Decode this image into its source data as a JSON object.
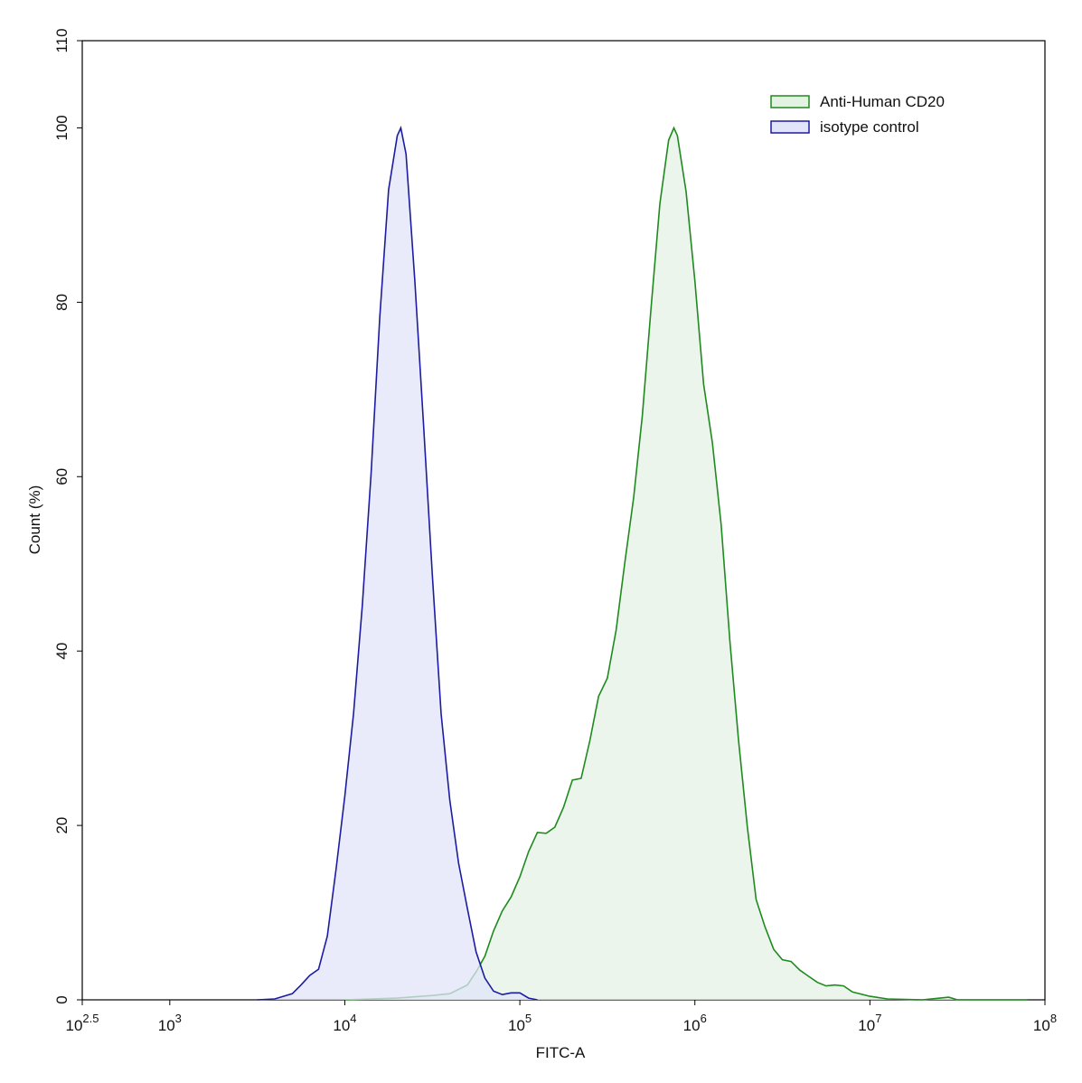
{
  "chart_data": {
    "type": "area",
    "xlabel": "FITC-A",
    "ylabel": "Count  (%)",
    "xscale": "log",
    "xlim": [
      316.23,
      100000000
    ],
    "xticks": [
      {
        "value": 316.23,
        "label": "10",
        "exponent": "2.5"
      },
      {
        "value": 1000,
        "label": "10",
        "exponent": "3"
      },
      {
        "value": 10000,
        "label": "10",
        "exponent": "4"
      },
      {
        "value": 100000,
        "label": "10",
        "exponent": "5"
      },
      {
        "value": 1000000,
        "label": "10",
        "exponent": "6"
      },
      {
        "value": 10000000,
        "label": "10",
        "exponent": "7"
      },
      {
        "value": 100000000,
        "label": "10",
        "exponent": "8"
      }
    ],
    "ylim": [
      0,
      110
    ],
    "yticks": [
      0,
      20,
      40,
      60,
      80,
      100,
      110
    ],
    "legend": "top-right",
    "series": [
      {
        "name": "Anti-Human CD20",
        "color": "#1f8a1f",
        "fill": "#e4f2e4",
        "x": [
          10000,
          19950,
          31620,
          39810,
          50120,
          56230,
          63100,
          70790,
          79430,
          89130,
          100000,
          112200,
          125900,
          141300,
          158500,
          177800,
          199500,
          223900,
          251200,
          281800,
          316200,
          354800,
          398100,
          446700,
          501200,
          562300,
          631000,
          707900,
          758600,
          794300,
          891300,
          1000000,
          1122000,
          1259000,
          1413000,
          1585000,
          1778000,
          1995000,
          2239000,
          2512000,
          2818000,
          3162000,
          3548000,
          3981000,
          4467000,
          5012000,
          5623000,
          6310000,
          7079000,
          7943000,
          10000000,
          12590000,
          19950000,
          25120000,
          28180000,
          31620000,
          79430000
        ],
        "values": [
          0,
          0.2,
          0.5,
          0.7,
          1.7,
          3.2,
          5.0,
          7.9,
          10.2,
          11.8,
          14.1,
          17.0,
          19.2,
          19.1,
          19.8,
          22.1,
          25.2,
          25.4,
          29.7,
          34.8,
          36.9,
          42.4,
          50.2,
          57.6,
          67.0,
          79.4,
          91.3,
          98.6,
          100,
          99.1,
          92.7,
          82.5,
          70.6,
          63.9,
          54.5,
          41.1,
          29.7,
          19.8,
          11.5,
          8.4,
          5.8,
          4.6,
          4.4,
          3.4,
          2.7,
          2.0,
          1.6,
          1.7,
          1.6,
          0.9,
          0.4,
          0.1,
          0,
          0.2,
          0.3,
          0,
          0
        ]
      },
      {
        "name": "isotype control",
        "color": "#1c1ca0",
        "fill": "#e2e4fa",
        "x": [
          3162,
          3981,
          5012,
          5623,
          6310,
          7079,
          7943,
          8913,
          10000,
          11220,
          12590,
          14130,
          15850,
          17780,
          19950,
          20890,
          22390,
          25120,
          28180,
          31620,
          35480,
          39810,
          44670,
          50120,
          56230,
          63100,
          70790,
          79430,
          89130,
          100000,
          112200,
          125900
        ],
        "values": [
          0,
          0.1,
          0.7,
          1.7,
          2.8,
          3.5,
          7.3,
          15.0,
          23.4,
          32.8,
          45.2,
          60.3,
          78.4,
          92.9,
          99.1,
          100,
          97.0,
          82.5,
          65.9,
          48.7,
          32.8,
          22.9,
          15.7,
          10.5,
          5.5,
          2.5,
          1.0,
          0.6,
          0.8,
          0.8,
          0.2,
          0
        ]
      }
    ]
  }
}
